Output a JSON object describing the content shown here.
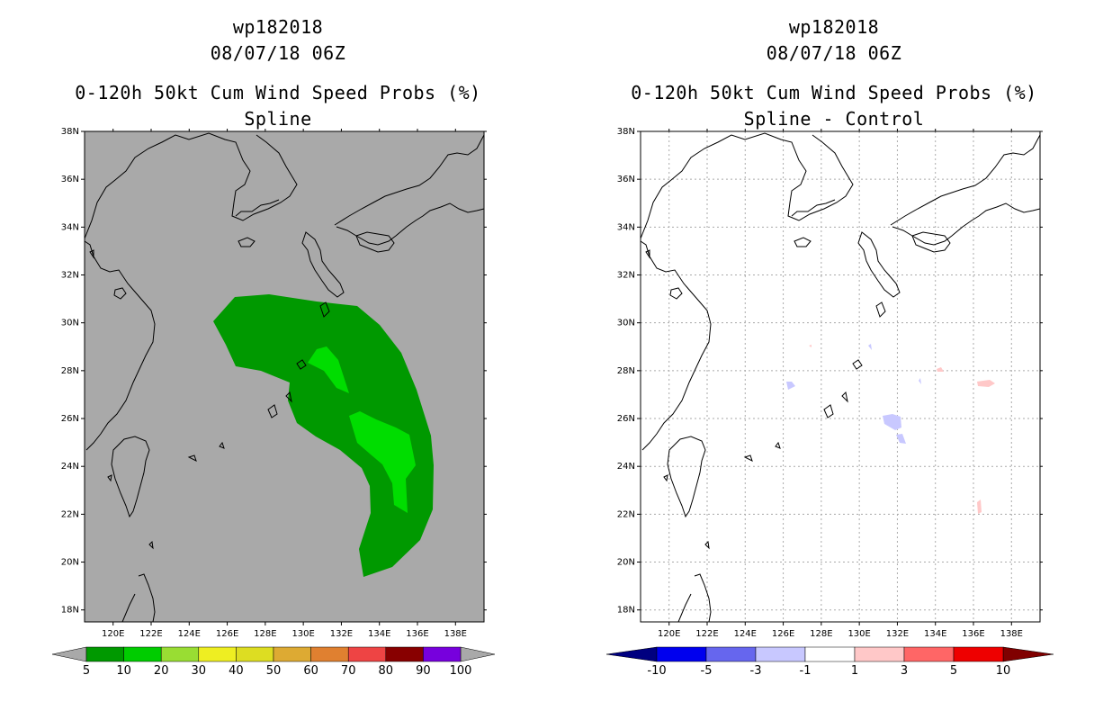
{
  "left": {
    "storm_id": "wp182018",
    "datetime": "08/07/18 06Z",
    "product": "0-120h 50kt Cum Wind Speed Probs (%)",
    "subtitle": "Spline",
    "background": "#a9a9a9",
    "grid": false,
    "colorbar": {
      "under_color": "#a9a9a9",
      "over_color": "#a9a9a9",
      "bins": [
        "#009900",
        "#00cc00",
        "#99dd33",
        "#eeee22",
        "#dddd22",
        "#ddaa33",
        "#e08030",
        "#ee4444",
        "#880000",
        "#7700dd"
      ],
      "labels": [
        "5",
        "10",
        "20",
        "30",
        "40",
        "50",
        "60",
        "70",
        "80",
        "90",
        "100"
      ]
    },
    "field_colors": {
      "p5": "#009900",
      "p10": "#00dd00"
    }
  },
  "right": {
    "storm_id": "wp182018",
    "datetime": "08/07/18 06Z",
    "product": "0-120h 50kt Cum Wind Speed Probs (%)",
    "subtitle": "Spline - Control",
    "background": "#ffffff",
    "grid": true,
    "colorbar": {
      "under_color": "#000080",
      "over_color": "#800000",
      "bins": [
        "#0000ee",
        "#6666ee",
        "#c8c8ff",
        "#ffffff",
        "#ffc8c8",
        "#ff6666",
        "#ee0000"
      ],
      "labels": [
        "-10",
        "-5",
        "-3",
        "-1",
        "1",
        "3",
        "5",
        "10"
      ]
    },
    "field_colors": {
      "neg": "#c8c8ff",
      "pos": "#ffc8c8"
    }
  },
  "axes": {
    "lon_ticks": [
      "120E",
      "122E",
      "124E",
      "126E",
      "128E",
      "130E",
      "132E",
      "134E",
      "136E",
      "138E"
    ],
    "lat_ticks": [
      "18N",
      "20N",
      "22N",
      "24N",
      "26N",
      "28N",
      "30N",
      "32N",
      "34N",
      "36N",
      "38N"
    ],
    "lon_range": [
      118.5,
      139.5
    ],
    "lat_range": [
      17.5,
      38.0
    ]
  },
  "coast_color": "#000000"
}
